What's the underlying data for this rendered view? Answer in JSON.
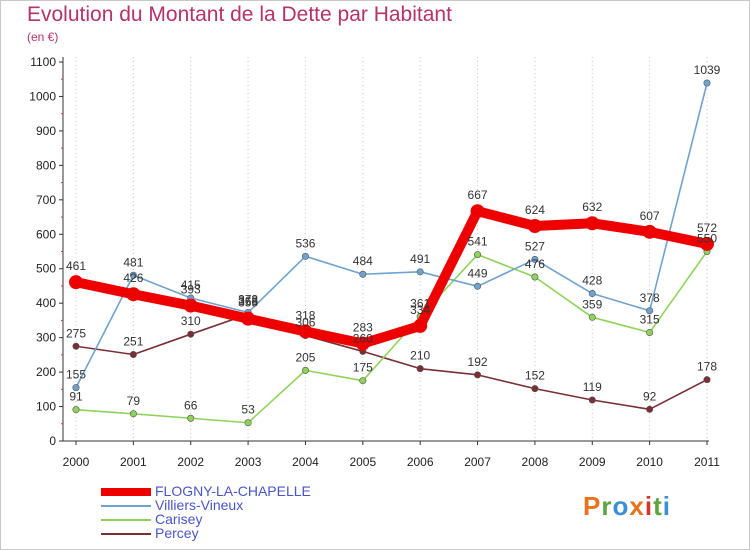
{
  "title": "Evolution du Montant de la Dette par Habitant",
  "unit_label": "(en €)",
  "logo": {
    "text": "Proxiti",
    "colors": [
      "#e8731c",
      "#5aa63c",
      "#3a8fd6",
      "#e8731c",
      "#d6332e",
      "#5aa63c",
      "#3a8fd6"
    ]
  },
  "chart_data": {
    "type": "line",
    "title": "Evolution du Montant de la Dette par Habitant",
    "ylabel": "(en €)",
    "xlabel": "",
    "x": [
      "2000",
      "2001",
      "2002",
      "2003",
      "2004",
      "2005",
      "2006",
      "2007",
      "2008",
      "2009",
      "2010",
      "2011"
    ],
    "ylim": [
      0,
      1100
    ],
    "yticks": [
      "0",
      "100",
      "200",
      "300",
      "400",
      "500",
      "600",
      "700",
      "800",
      "900",
      "1000",
      "1100"
    ],
    "grid": "vertical-dotted",
    "legend_position": "bottom-left",
    "series": [
      {
        "name": "Percey",
        "color": "#7a2f35",
        "values": [
          275,
          251,
          310,
          368,
          306,
          260,
          210,
          192,
          152,
          119,
          92,
          178
        ],
        "labels": [
          "275",
          "251",
          "310",
          "368",
          "306",
          "260",
          "210",
          "192",
          "152",
          "119",
          "92",
          "178"
        ]
      },
      {
        "name": "Carisey",
        "color": "#8fd35a",
        "values": [
          91,
          79,
          66,
          53,
          205,
          175,
          361,
          541,
          476,
          359,
          315,
          550
        ],
        "labels": [
          "91",
          "79",
          "66",
          "53",
          "205",
          "175",
          "361",
          "541",
          "476",
          "359",
          "315",
          "550"
        ]
      },
      {
        "name": "Villiers-Vineux",
        "color": "#6fa3cf",
        "values": [
          155,
          481,
          415,
          373,
          536,
          484,
          491,
          449,
          527,
          428,
          378,
          1039
        ],
        "labels": [
          "155",
          "481",
          "415",
          "373",
          "536",
          "484",
          "491",
          "449",
          "527",
          "428",
          "378",
          "1039"
        ]
      },
      {
        "name": "FLOGNY-LA-CHAPELLE",
        "color": "#ee0000",
        "values": [
          461,
          426,
          393,
          355,
          318,
          283,
          334,
          667,
          624,
          632,
          607,
          572
        ],
        "labels": [
          "461",
          "426",
          "393",
          "355",
          "318",
          "283",
          "334",
          "667",
          "624",
          "632",
          "607",
          "572"
        ]
      }
    ],
    "legend_order": [
      "FLOGNY-LA-CHAPELLE",
      "Villiers-Vineux",
      "Carisey",
      "Percey"
    ]
  }
}
